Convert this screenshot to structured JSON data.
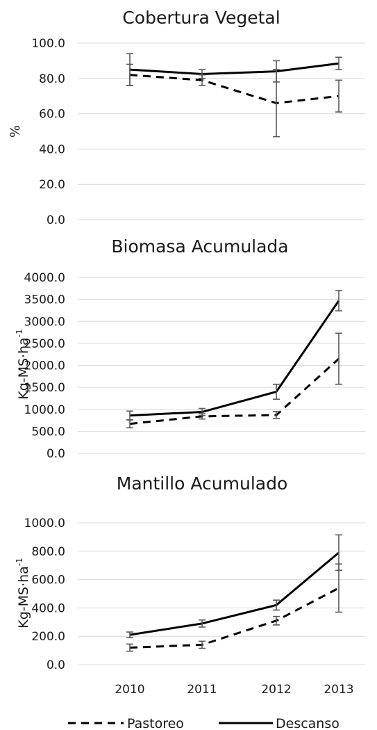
{
  "legend": {
    "pastoreo": "Pastoreo",
    "descanso": "Descanso"
  },
  "chart_data": [
    {
      "type": "line",
      "title": "Cobertura Vegetal",
      "ylabel": "%",
      "ylabel_sup": "",
      "xlabel": "",
      "ylim": [
        0,
        100
      ],
      "yticks": [
        "0.0",
        "20.0",
        "40.0",
        "60.0",
        "80.0",
        "100.0"
      ],
      "show_x_ticks": false,
      "categories": [
        "2010",
        "2011",
        "2012",
        "2013"
      ],
      "series": [
        {
          "name": "Pastoreo",
          "values": [
            82,
            79,
            66,
            70
          ],
          "err": [
            6,
            3,
            19,
            9
          ]
        },
        {
          "name": "Descanso",
          "values": [
            85,
            82.5,
            84,
            88.5
          ],
          "err": [
            9,
            2.5,
            6,
            3.5
          ]
        }
      ]
    },
    {
      "type": "line",
      "title": "Biomasa Acumulada",
      "ylabel": "Kg-MS·ha",
      "ylabel_sup": "-1",
      "xlabel": "",
      "ylim": [
        0,
        4000
      ],
      "yticks": [
        "0.0",
        "500.0",
        "1000.0",
        "1500.0",
        "2000.0",
        "2500.0",
        "3000.0",
        "3500.0",
        "4000.0"
      ],
      "show_x_ticks": false,
      "categories": [
        "2010",
        "2011",
        "2012",
        "2013"
      ],
      "series": [
        {
          "name": "Pastoreo",
          "values": [
            670,
            840,
            870,
            2150
          ],
          "err": [
            90,
            60,
            80,
            580
          ]
        },
        {
          "name": "Descanso",
          "values": [
            860,
            940,
            1400,
            3470
          ],
          "err": [
            100,
            80,
            170,
            230
          ]
        }
      ]
    },
    {
      "type": "line",
      "title": "Mantillo Acumulado",
      "ylabel": "Kg-MS·ha",
      "ylabel_sup": "-1",
      "xlabel": "",
      "ylim": [
        0,
        1000
      ],
      "yticks": [
        "0.0",
        "200.0",
        "400.0",
        "600.0",
        "800.0",
        "1000.0"
      ],
      "show_x_ticks": true,
      "categories": [
        "2010",
        "2011",
        "2012",
        "2013"
      ],
      "series": [
        {
          "name": "Pastoreo",
          "values": [
            120,
            140,
            310,
            540
          ],
          "err": [
            25,
            25,
            30,
            170
          ]
        },
        {
          "name": "Descanso",
          "values": [
            210,
            290,
            420,
            790
          ],
          "err": [
            20,
            25,
            35,
            125
          ]
        }
      ]
    }
  ]
}
